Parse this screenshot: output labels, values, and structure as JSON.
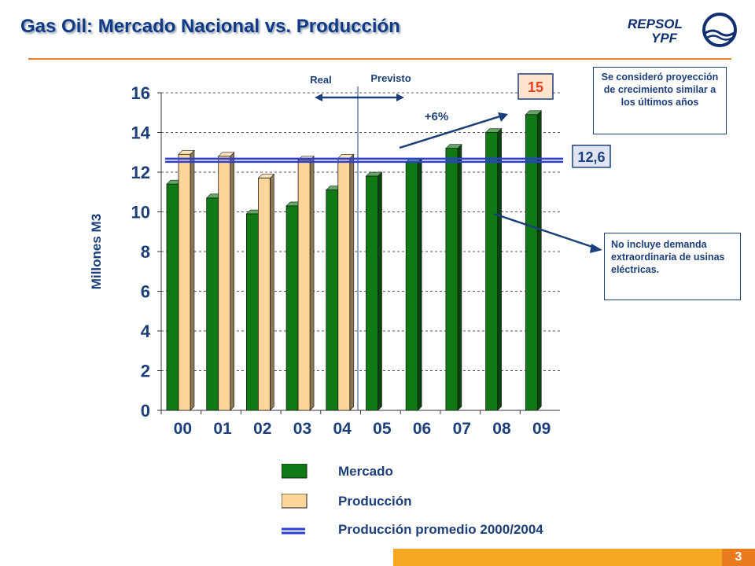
{
  "title": "Gas Oil: Mercado Nacional vs. Producción",
  "logo": {
    "line1": "REPSOL",
    "line2": "YPF"
  },
  "chart_data": {
    "type": "bar",
    "categories": [
      "00",
      "01",
      "02",
      "03",
      "04",
      "05",
      "06",
      "07",
      "08",
      "09"
    ],
    "series": [
      {
        "name": "Mercado",
        "color": "#0f7a14",
        "values": [
          11.4,
          10.7,
          9.9,
          10.3,
          11.1,
          11.8,
          12.5,
          13.2,
          14.0,
          14.9
        ]
      },
      {
        "name": "Producción",
        "color": "#ffd699",
        "values": [
          12.9,
          12.8,
          11.7,
          12.6,
          12.7,
          null,
          null,
          null,
          null,
          null
        ]
      }
    ],
    "reference_line": {
      "name": "Producción promedio 2000/2004",
      "value": 12.6,
      "label": "12,6",
      "color": "#2b3fd6"
    },
    "ylabel": "Millones M3",
    "ylim": [
      0,
      16
    ],
    "yticks": [
      0,
      2,
      4,
      6,
      8,
      10,
      12,
      14,
      16
    ],
    "grid": true,
    "annotations": {
      "real": "Real",
      "previsto": "Previsto",
      "growth": "+6%",
      "peak_label": "15"
    }
  },
  "notes": {
    "projection": "Se consideró proyección de crecimiento similar a los últimos años",
    "exclusion": "No incluye demanda extraordinaria de usinas eléctricas."
  },
  "legend": [
    {
      "label": "Mercado",
      "symbol": "bar",
      "color": "#0f7a14"
    },
    {
      "label": "Producción",
      "symbol": "bar",
      "color": "#ffd699"
    },
    {
      "label": "Producción promedio 2000/2004",
      "symbol": "line",
      "color": "#2b3fd6"
    }
  ],
  "page_number": "3"
}
